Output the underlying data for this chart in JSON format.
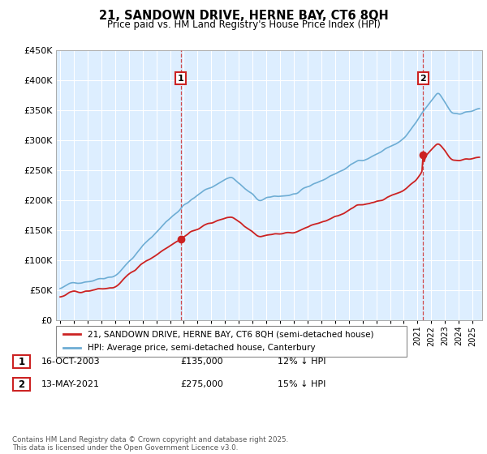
{
  "title_line1": "21, SANDOWN DRIVE, HERNE BAY, CT6 8QH",
  "title_line2": "Price paid vs. HM Land Registry's House Price Index (HPI)",
  "ylim": [
    0,
    450000
  ],
  "yticks": [
    0,
    50000,
    100000,
    150000,
    200000,
    250000,
    300000,
    350000,
    400000,
    450000
  ],
  "ytick_labels": [
    "£0",
    "£50K",
    "£100K",
    "£150K",
    "£200K",
    "£250K",
    "£300K",
    "£350K",
    "£400K",
    "£450K"
  ],
  "legend_line1": "21, SANDOWN DRIVE, HERNE BAY, CT6 8QH (semi-detached house)",
  "legend_line2": "HPI: Average price, semi-detached house, Canterbury",
  "table_row1": [
    "1",
    "16-OCT-2003",
    "£135,000",
    "12% ↓ HPI"
  ],
  "table_row2": [
    "2",
    "13-MAY-2021",
    "£275,000",
    "15% ↓ HPI"
  ],
  "footnote": "Contains HM Land Registry data © Crown copyright and database right 2025.\nThis data is licensed under the Open Government Licence v3.0.",
  "hpi_color": "#6eadd4",
  "price_color": "#cc2222",
  "chart_bg": "#ddeeff",
  "grid_color": "#aabbcc",
  "sale1_year": 2003.79,
  "sale1_price": 135000,
  "sale2_year": 2021.37,
  "sale2_price": 275000,
  "ann_box_color": "#cc2222"
}
